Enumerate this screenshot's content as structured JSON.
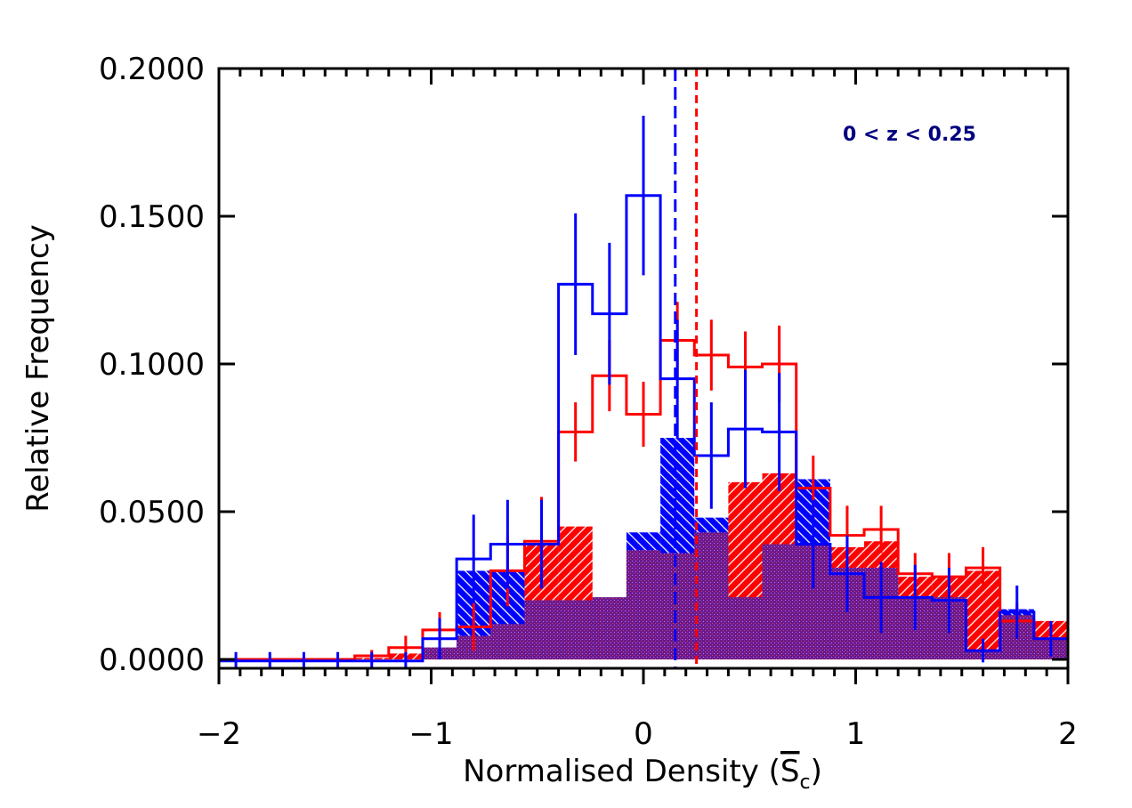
{
  "chart_data": {
    "type": "histogram",
    "xlabel": "Normalised Density (",
    "xlabel_symbol": "S",
    "xlabel_subscript": "c",
    "xlabel_close": ")",
    "ylabel": "Relative Frequency",
    "xlim": [
      -2,
      2
    ],
    "ylim": [
      -0.003,
      0.2
    ],
    "x_ticks": [
      -2,
      -1,
      0,
      1,
      2
    ],
    "x_tick_labels": [
      "−2",
      "−1",
      "0",
      "1",
      "2"
    ],
    "x_minor_step": 0.1,
    "y_ticks": [
      0,
      0.05,
      0.1,
      0.15,
      0.2
    ],
    "y_tick_labels": [
      "0.0000",
      "0.0500",
      "0.1000",
      "0.1500",
      "0.2000"
    ],
    "annotation": "0 < z < 0.25",
    "bin_edges": [
      -2.0,
      -1.84,
      -1.68,
      -1.52,
      -1.36,
      -1.2,
      -1.04,
      -0.88,
      -0.72,
      -0.56,
      -0.4,
      -0.24,
      -0.08,
      0.08,
      0.24,
      0.4,
      0.56,
      0.72,
      0.88,
      1.04,
      1.2,
      1.36,
      1.52,
      1.68,
      1.84,
      2.0
    ],
    "series": [
      {
        "name": "red-outline",
        "color": "#ff0000",
        "style": "step",
        "values": [
          0,
          0,
          0,
          0,
          0.0012,
          0.004,
          0.01,
          0.011,
          0.03,
          0.04,
          0.077,
          0.096,
          0.083,
          0.108,
          0.103,
          0.099,
          0.1,
          0.058,
          0.042,
          0.044,
          0.029,
          0.028,
          0.031,
          0.013,
          0.007,
          0.0005
        ],
        "errors": [
          0,
          0,
          0,
          0,
          0.002,
          0.004,
          0.006,
          0.008,
          0.012,
          0.015,
          0.01,
          0.012,
          0.011,
          0.013,
          0.012,
          0.012,
          0.013,
          0.011,
          0.01,
          0.008,
          0.007,
          0.008,
          0.007,
          0.006,
          0.005,
          0.0005
        ]
      },
      {
        "name": "blue-outline",
        "color": "#0000ff",
        "style": "step",
        "values": [
          -0.0005,
          -0.0005,
          -0.0005,
          -0.0005,
          -0.0005,
          -0.0005,
          0.007,
          0.034,
          0.039,
          0.039,
          0.127,
          0.117,
          0.157,
          0.095,
          0.069,
          0.078,
          0.077,
          0.039,
          0.029,
          0.021,
          0.021,
          0.02,
          0.003,
          0.016,
          0.007,
          -0.0005
        ],
        "errors": [
          0.003,
          0.003,
          0.003,
          0.003,
          0.003,
          0.003,
          0.007,
          0.015,
          0.015,
          0.015,
          0.024,
          0.024,
          0.027,
          0.02,
          0.018,
          0.02,
          0.02,
          0.015,
          0.013,
          0.012,
          0.011,
          0.011,
          0.004,
          0.009,
          0.006,
          0.003
        ]
      },
      {
        "name": "red-filled",
        "color": "#ff0000",
        "style": "filled-hatch",
        "values": [
          0,
          0,
          0,
          0,
          0.0005,
          0.002,
          0.004,
          0.008,
          0.012,
          0.039,
          0.045,
          0.021,
          0.037,
          0.036,
          0.043,
          0.06,
          0.063,
          0.039,
          0.038,
          0.04,
          0.028,
          0.028,
          0.03,
          0.015,
          0.013,
          0
        ]
      },
      {
        "name": "blue-filled",
        "color": "#0000ff",
        "style": "filled-hatch",
        "values": [
          0,
          0,
          0,
          0,
          0,
          0,
          0.004,
          0.03,
          0.03,
          0.02,
          0.02,
          0.021,
          0.043,
          0.075,
          0.048,
          0.021,
          0.039,
          0.061,
          0.031,
          0.031,
          0.021,
          0.021,
          0.003,
          0.017,
          0.007,
          0
        ]
      },
      {
        "name": "overlap",
        "color": "#701a90",
        "style": "stipple",
        "values": [
          0,
          0,
          0,
          0,
          0,
          0,
          0.004,
          0.008,
          0.012,
          0.02,
          0.02,
          0.021,
          0.037,
          0.036,
          0.043,
          0.021,
          0.039,
          0.039,
          0.031,
          0.031,
          0.021,
          0.021,
          0.003,
          0.015,
          0.007,
          0
        ]
      }
    ],
    "vlines": [
      {
        "name": "red-median",
        "x": 0.25,
        "color": "#ff0000",
        "dash": "short"
      },
      {
        "name": "blue-median",
        "x": 0.15,
        "color": "#0000ff",
        "dash": "long"
      }
    ],
    "colors": {
      "red": "#ff0000",
      "blue": "#0000ff",
      "overlap": "#701a90",
      "annotation": "#000080"
    }
  }
}
